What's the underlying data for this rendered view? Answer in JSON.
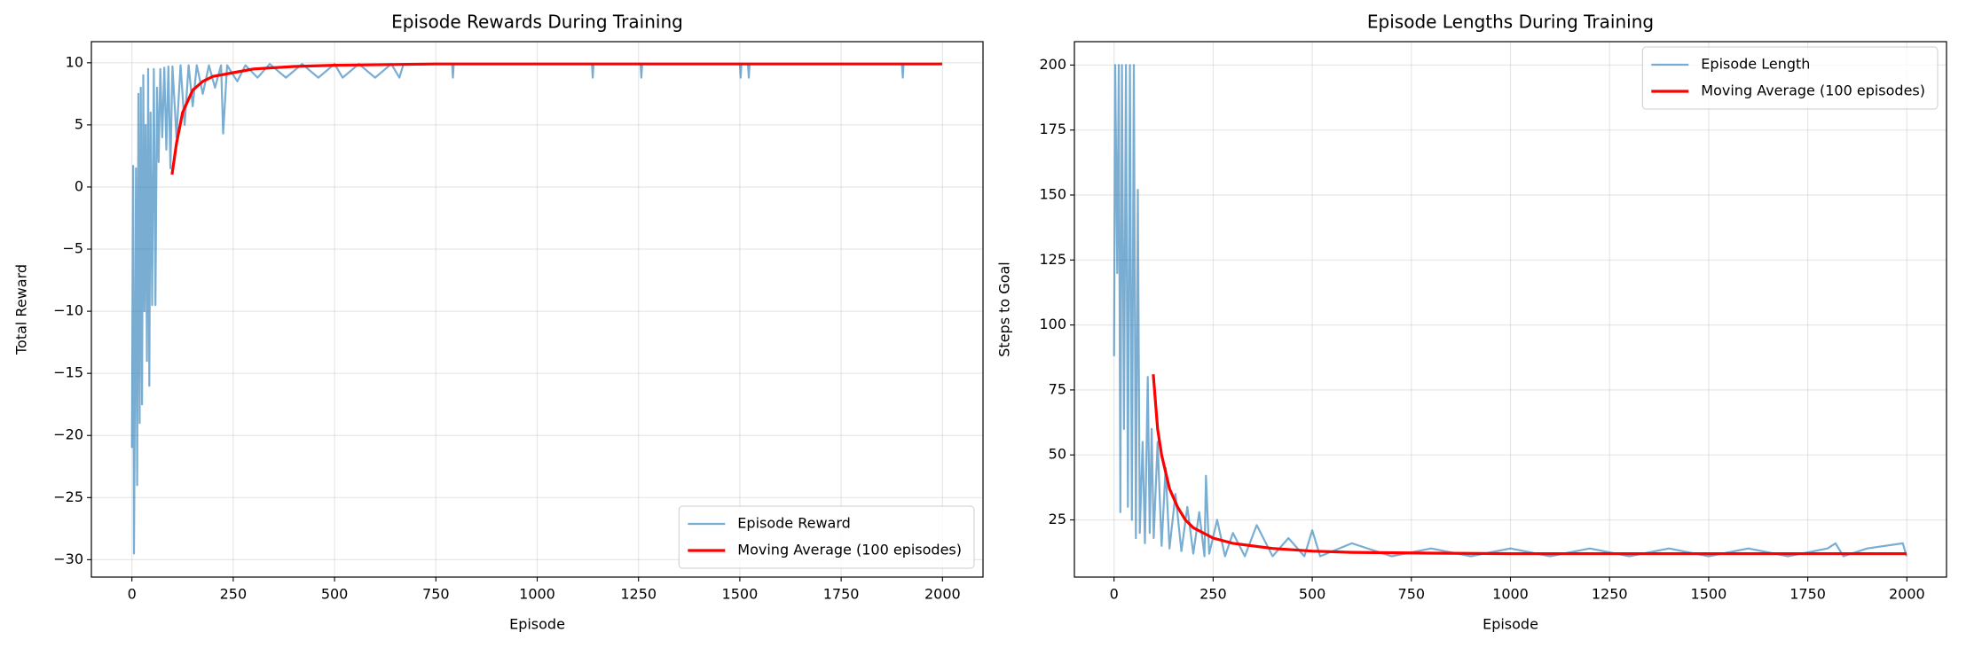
{
  "chart_data": [
    {
      "type": "line",
      "title": "Episode Rewards During Training",
      "xlabel": "Episode",
      "ylabel": "Total Reward",
      "xlim": [
        -100,
        2100
      ],
      "ylim": [
        -31.4,
        11.7
      ],
      "xticks": [
        0,
        250,
        500,
        750,
        1000,
        1250,
        1500,
        1750,
        2000
      ],
      "yticks": [
        {
          "value": -30,
          "label": "−30"
        },
        {
          "value": -25,
          "label": "−25"
        },
        {
          "value": -20,
          "label": "−20"
        },
        {
          "value": -15,
          "label": "−15"
        },
        {
          "value": -10,
          "label": "−10"
        },
        {
          "value": -5,
          "label": "−5"
        },
        0,
        5,
        10
      ],
      "grid": true,
      "legend": "lower right",
      "series": [
        {
          "name": "Episode Reward",
          "color": "#1f77b4",
          "x": [
            0,
            3,
            5,
            8,
            10,
            13,
            16,
            19,
            22,
            25,
            28,
            31,
            34,
            37,
            40,
            43,
            46,
            50,
            54,
            58,
            62,
            66,
            70,
            75,
            80,
            85,
            90,
            95,
            100,
            110,
            120,
            130,
            140,
            150,
            160,
            175,
            190,
            205,
            220,
            225,
            235,
            260,
            280,
            310,
            340,
            380,
            420,
            460,
            500,
            520,
            560,
            600,
            640,
            660,
            670,
            790,
            792,
            794,
            1135,
            1137,
            1139,
            1255,
            1257,
            1259,
            1500,
            1502,
            1504,
            1520,
            1522,
            1524,
            1900,
            1902,
            1904,
            1999
          ],
          "values": [
            -21,
            1.7,
            -29.5,
            -14,
            1.5,
            -24,
            7.5,
            -19,
            8,
            -17.5,
            9,
            -10,
            5,
            -14,
            9.5,
            -16,
            6,
            -9.5,
            9.5,
            -9.5,
            8,
            2,
            9.5,
            4,
            9.6,
            3,
            9.7,
            1.5,
            9.7,
            4,
            9.8,
            5,
            9.8,
            6.5,
            9.8,
            7.5,
            9.8,
            8,
            9.8,
            4.3,
            9.8,
            8.5,
            9.8,
            8.8,
            9.9,
            8.8,
            9.9,
            8.8,
            9.9,
            8.8,
            9.9,
            8.8,
            9.9,
            8.8,
            9.9,
            9.9,
            8.8,
            9.9,
            9.9,
            8.8,
            9.9,
            9.9,
            8.8,
            9.9,
            9.9,
            8.8,
            9.9,
            9.9,
            8.8,
            9.9,
            9.9,
            8.8,
            9.9,
            9.9
          ]
        },
        {
          "name": "Moving Average (100 episodes)",
          "color": "#ff0000",
          "x": [
            99,
            110,
            125,
            150,
            175,
            200,
            250,
            300,
            400,
            500,
            750,
            1000,
            1500,
            1999
          ],
          "values": [
            1,
            3.5,
            6,
            7.8,
            8.5,
            8.9,
            9.2,
            9.5,
            9.7,
            9.8,
            9.9,
            9.9,
            9.9,
            9.9
          ]
        }
      ]
    },
    {
      "type": "line",
      "title": "Episode Lengths During Training",
      "xlabel": "Episode",
      "ylabel": "Steps to Goal",
      "xlim": [
        -100,
        2100
      ],
      "ylim": [
        3,
        209
      ],
      "xticks": [
        0,
        250,
        500,
        750,
        1000,
        1250,
        1500,
        1750,
        2000
      ],
      "yticks": [
        25,
        50,
        75,
        100,
        125,
        150,
        175,
        200
      ],
      "grid": true,
      "legend": "upper right",
      "series": [
        {
          "name": "Episode Length",
          "color": "#1f77b4",
          "x": [
            0,
            3,
            8,
            12,
            16,
            20,
            25,
            30,
            35,
            40,
            45,
            50,
            55,
            60,
            65,
            72,
            78,
            85,
            90,
            95,
            100,
            110,
            120,
            130,
            140,
            155,
            170,
            185,
            200,
            215,
            228,
            232,
            240,
            260,
            280,
            300,
            330,
            360,
            400,
            440,
            480,
            500,
            520,
            600,
            700,
            800,
            900,
            1000,
            1100,
            1200,
            1300,
            1400,
            1500,
            1600,
            1700,
            1800,
            1820,
            1840,
            1900,
            1990,
            1999
          ],
          "values": [
            88,
            200,
            120,
            200,
            28,
            200,
            60,
            200,
            30,
            200,
            25,
            200,
            18,
            152,
            20,
            55,
            16,
            80,
            20,
            60,
            18,
            55,
            15,
            45,
            14,
            35,
            13,
            30,
            12,
            28,
            11,
            42,
            12,
            25,
            11,
            20,
            11,
            23,
            11,
            18,
            11,
            21,
            11,
            16,
            11,
            14,
            11,
            14,
            11,
            14,
            11,
            14,
            11,
            14,
            11,
            14,
            16,
            11,
            14,
            16,
            11
          ]
        },
        {
          "name": "Moving Average (100 episodes)",
          "color": "#ff0000",
          "x": [
            99,
            110,
            120,
            140,
            160,
            180,
            200,
            250,
            300,
            400,
            500,
            600,
            800,
            1000,
            1500,
            1999
          ],
          "values": [
            81,
            60,
            50,
            37,
            30,
            25,
            22,
            18,
            16,
            14,
            13,
            12.5,
            12.2,
            12,
            12,
            12
          ]
        }
      ]
    }
  ]
}
